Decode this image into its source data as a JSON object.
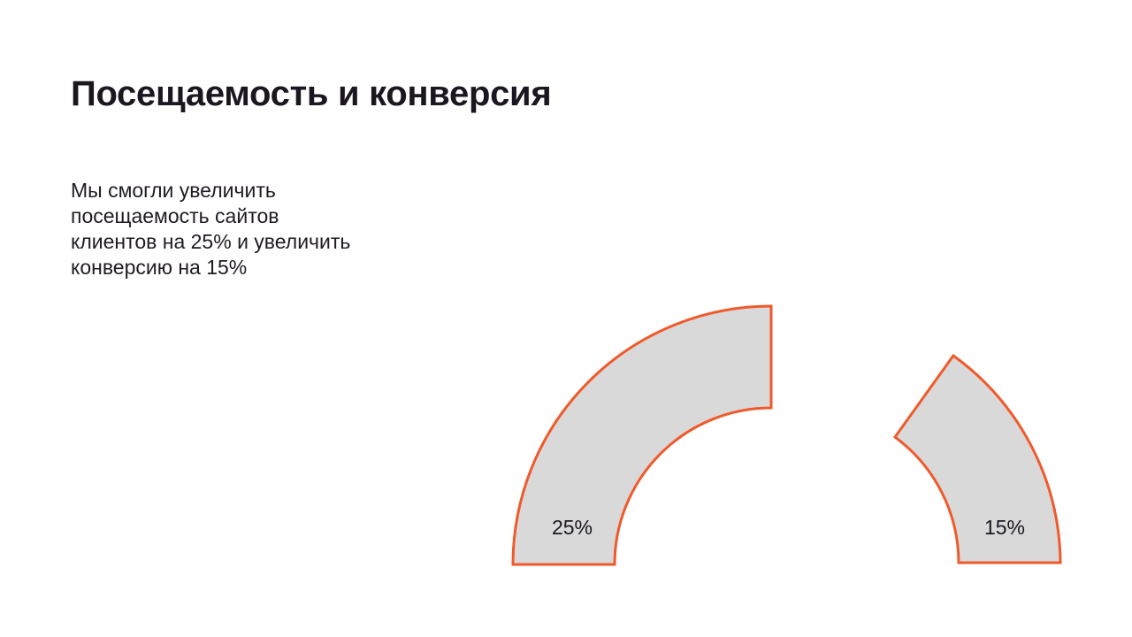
{
  "slide": {
    "title": "Посещаемость и конверсия",
    "text": "Мы смогли увеличить\nпосещаемость сайтов\nклиентов на 25% и увеличить\nконверсию на 15%"
  },
  "gauge": {
    "colors": {
      "fill": "#d9d9d9",
      "stroke": "#f05a2b"
    },
    "segments": [
      {
        "label": "25%",
        "value": 25
      },
      {
        "label": "15%",
        "value": 15
      }
    ]
  }
}
